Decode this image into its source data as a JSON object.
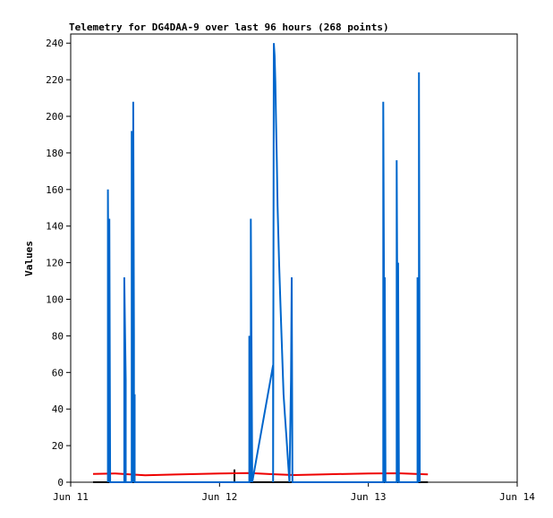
{
  "chart_data": {
    "type": "line",
    "title": "Telemetry for DG4DAA-9 over last 96 hours (268 points)",
    "xlabel": "",
    "ylabel": "Values",
    "ylim": [
      0,
      245
    ],
    "xlim": [
      0,
      3
    ],
    "yticks": [
      0,
      20,
      40,
      60,
      80,
      100,
      120,
      140,
      160,
      180,
      200,
      220,
      240
    ],
    "xticks": [
      {
        "value": 0,
        "label": "Jun 11"
      },
      {
        "value": 1,
        "label": "Jun 12"
      },
      {
        "value": 2,
        "label": "Jun 13"
      },
      {
        "value": 3,
        "label": "Jun 14"
      }
    ],
    "grid": false,
    "series": [
      {
        "color": "#0066cc",
        "x": [
          0.25,
          0.25,
          0.26,
          0.26,
          0.265,
          0.36,
          0.36,
          0.37,
          0.37,
          0.41,
          0.41,
          0.415,
          0.415,
          0.42,
          0.42,
          0.425,
          0.425,
          0.43,
          0.43,
          0.435,
          1.2,
          1.2,
          1.21,
          1.21,
          1.22,
          1.36,
          1.36,
          1.365,
          1.37,
          1.375,
          1.38,
          1.385,
          1.39,
          1.4,
          1.41,
          1.42,
          1.43,
          1.44,
          1.45,
          1.46,
          1.47,
          1.48,
          1.485,
          1.49,
          1.49,
          1.495,
          2.1,
          2.1,
          2.11,
          2.11,
          2.115,
          2.19,
          2.19,
          2.2,
          2.2,
          2.205,
          2.33,
          2.33,
          2.34,
          2.34,
          2.345
        ],
        "y": [
          0,
          160,
          0,
          144,
          0,
          0,
          112,
          56,
          0,
          0,
          192,
          0,
          96,
          0,
          208,
          80,
          0,
          48,
          0,
          0,
          0,
          80,
          0,
          144,
          0,
          64,
          0,
          240,
          233,
          219,
          197,
          175,
          151,
          120,
          96,
          72,
          48,
          36,
          24,
          12,
          0,
          56,
          112,
          0,
          0,
          0,
          0,
          208,
          0,
          112,
          0,
          0,
          176,
          0,
          120,
          0,
          0,
          112,
          0,
          224,
          0
        ]
      },
      {
        "color": "#ee0000",
        "x": [
          0.15,
          0.3,
          0.5,
          0.7,
          1.0,
          1.2,
          1.35,
          1.5,
          1.7,
          2.0,
          2.2,
          2.4
        ],
        "y": [
          4.5,
          4.8,
          3.8,
          4.2,
          4.8,
          5.0,
          4.4,
          3.9,
          4.3,
          4.8,
          4.9,
          4.3
        ]
      },
      {
        "color": "#000000",
        "x": [
          0.15,
          1.1,
          1.1,
          1.1,
          2.4
        ],
        "y": [
          0,
          0,
          7,
          0,
          0
        ]
      }
    ]
  }
}
